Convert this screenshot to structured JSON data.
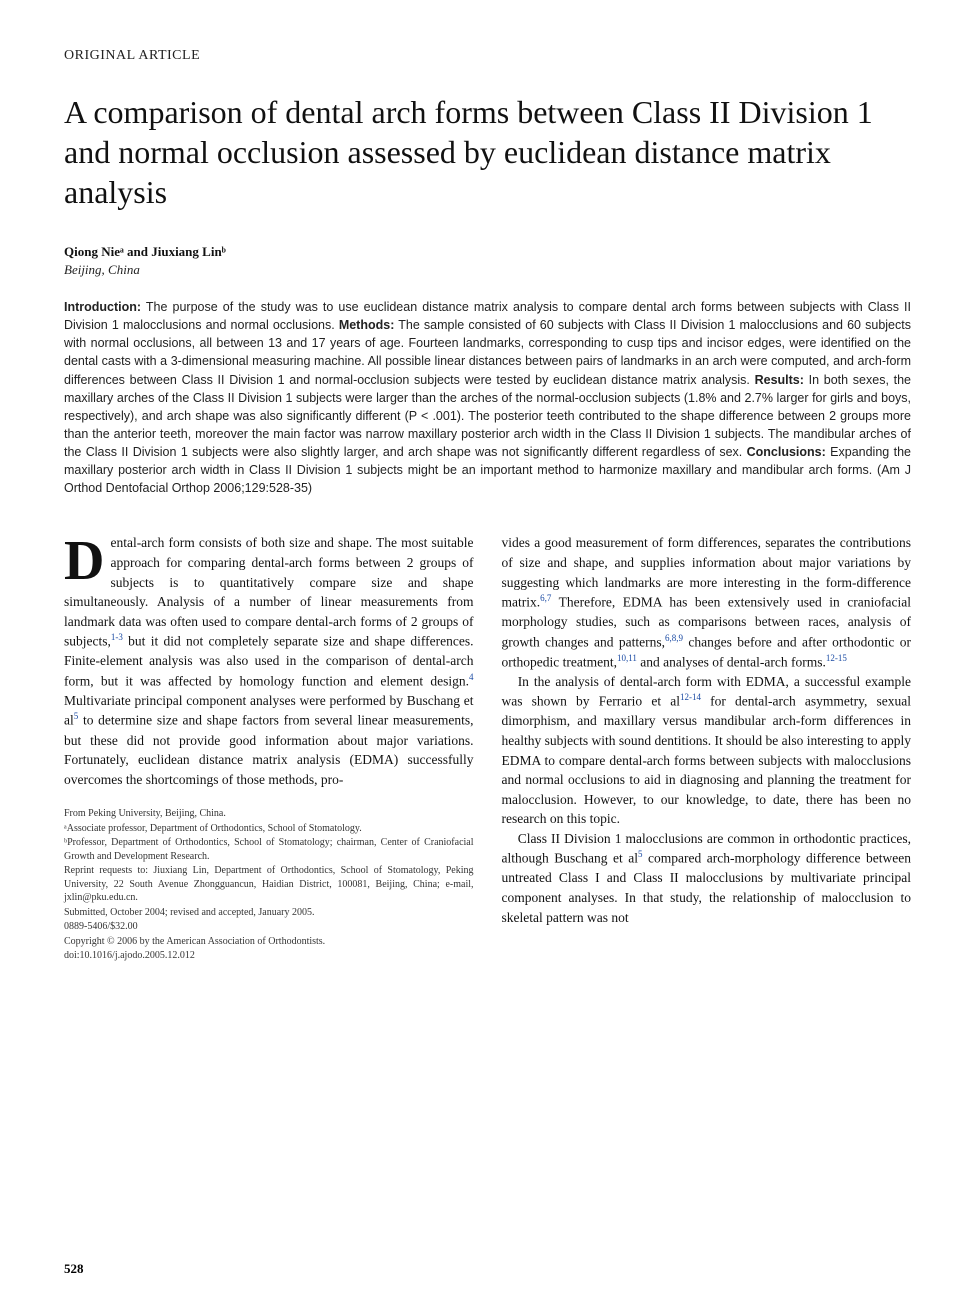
{
  "section_label": "ORIGINAL ARTICLE",
  "title": "A comparison of dental arch forms between Class II Division 1 and normal occlusion assessed by euclidean distance matrix analysis",
  "authors": "Qiong Nieᵃ and Jiuxiang Linᵇ",
  "affiliation": "Beijing, China",
  "abstract": {
    "intro_label": "Introduction:",
    "intro": " The purpose of the study was to use euclidean distance matrix analysis to compare dental arch forms between subjects with Class II Division 1 malocclusions and normal occlusions. ",
    "methods_label": "Methods:",
    "methods": " The sample consisted of 60 subjects with Class II Division 1 malocclusions and 60 subjects with normal occlusions, all between 13 and 17 years of age. Fourteen landmarks, corresponding to cusp tips and incisor edges, were identified on the dental casts with a 3-dimensional measuring machine. All possible linear distances between pairs of landmarks in an arch were computed, and arch-form differences between Class II Division 1 and normal-occlusion subjects were tested by euclidean distance matrix analysis. ",
    "results_label": "Results:",
    "results": " In both sexes, the maxillary arches of the Class II Division 1 subjects were larger than the arches of the normal-occlusion subjects (1.8% and 2.7% larger for girls and boys, respectively), and arch shape was also significantly different (P < .001). The posterior teeth contributed to the shape difference between 2 groups more than the anterior teeth, moreover the main factor was narrow maxillary posterior arch width in the Class II Division 1 subjects. The mandibular arches of the Class II Division 1 subjects were also slightly larger, and arch shape was not significantly different regardless of sex. ",
    "conclusions_label": "Conclusions:",
    "conclusions": " Expanding the maxillary posterior arch width in Class II Division 1 subjects might be an important method to harmonize maxillary and mandibular arch forms. (Am J Orthod Dentofacial Orthop 2006;129:528-35)"
  },
  "body": {
    "col1": {
      "dropcap": "D",
      "p1": "ental-arch form consists of both size and shape. The most suitable approach for comparing dental-arch forms between 2 groups of subjects is to quantitatively compare size and shape simultaneously. Analysis of a number of linear measurements from landmark data was often used to compare dental-arch forms of 2 groups of subjects,",
      "sup1": "1-3",
      "p1b": " but it did not completely separate size and shape differences. Finite-element analysis was also used in the comparison of dental-arch form, but it was affected by homology function and element design.",
      "sup2": "4",
      "p1c": " Multivariate principal component analyses were performed by Buschang et al",
      "sup3": "5",
      "p1d": " to determine size and shape factors from several linear measurements, but these did not provide good information about major variations. Fortunately, euclidean distance matrix analysis (EDMA) successfully overcomes the shortcomings of those methods, pro-"
    },
    "col2": {
      "p1a": "vides a good measurement of form differences, separates the contributions of size and shape, and supplies information about major variations by suggesting which landmarks are more interesting in the form-difference matrix.",
      "sup1": "6,7",
      "p1b": " Therefore, EDMA has been extensively used in craniofacial morphology studies, such as comparisons between races, analysis of growth changes and patterns,",
      "sup2": "6,8,9",
      "p1c": " changes before and after orthodontic or orthopedic treatment,",
      "sup3": "10,11",
      "p1d": " and analyses of dental-arch forms.",
      "sup4": "12-15",
      "p2a": "In the analysis of dental-arch form with EDMA, a successful example was shown by Ferrario et al",
      "sup5": "12-14",
      "p2b": " for dental-arch asymmetry, sexual dimorphism, and maxillary versus mandibular arch-form differences in healthy subjects with sound dentitions. It should be also interesting to apply EDMA to compare dental-arch forms between subjects with malocclusions and normal occlusions to aid in diagnosing and planning the treatment for malocclusion. However, to our knowledge, to date, there has been no research on this topic.",
      "p3a": "Class II Division 1 malocclusions are common in orthodontic practices, although Buschang et al",
      "sup6": "5",
      "p3b": " compared arch-morphology difference between untreated Class I and Class II malocclusions by multivariate principal component analyses. In that study, the relationship of malocclusion to skeletal pattern was not"
    }
  },
  "footnotes": {
    "l1": "From Peking University, Beijing, China.",
    "l2": "ᵃAssociate professor, Department of Orthodontics, School of Stomatology.",
    "l3": "ᵇProfessor, Department of Orthodontics, School of Stomatology; chairman, Center of Craniofacial Growth and Development Research.",
    "l4": "Reprint requests to: Jiuxiang Lin, Department of Orthodontics, School of Stomatology, Peking University, 22 South Avenue Zhongguancun, Haidian District, 100081, Beijing, China; e-mail, jxlin@pku.edu.cn.",
    "l5": "Submitted, October 2004; revised and accepted, January 2005.",
    "l6": "0889-5406/$32.00",
    "l7": "Copyright © 2006 by the American Association of Orthodontists.",
    "l8": "doi:10.1016/j.ajodo.2005.12.012"
  },
  "page_number": "528",
  "colors": {
    "text": "#000000",
    "link": "#1a4aa3",
    "background": "#ffffff"
  },
  "typography": {
    "title_fontsize": 32,
    "body_fontsize": 13.5,
    "abstract_fontsize": 12.5,
    "footnote_fontsize": 10,
    "dropcap_fontsize": 56
  }
}
